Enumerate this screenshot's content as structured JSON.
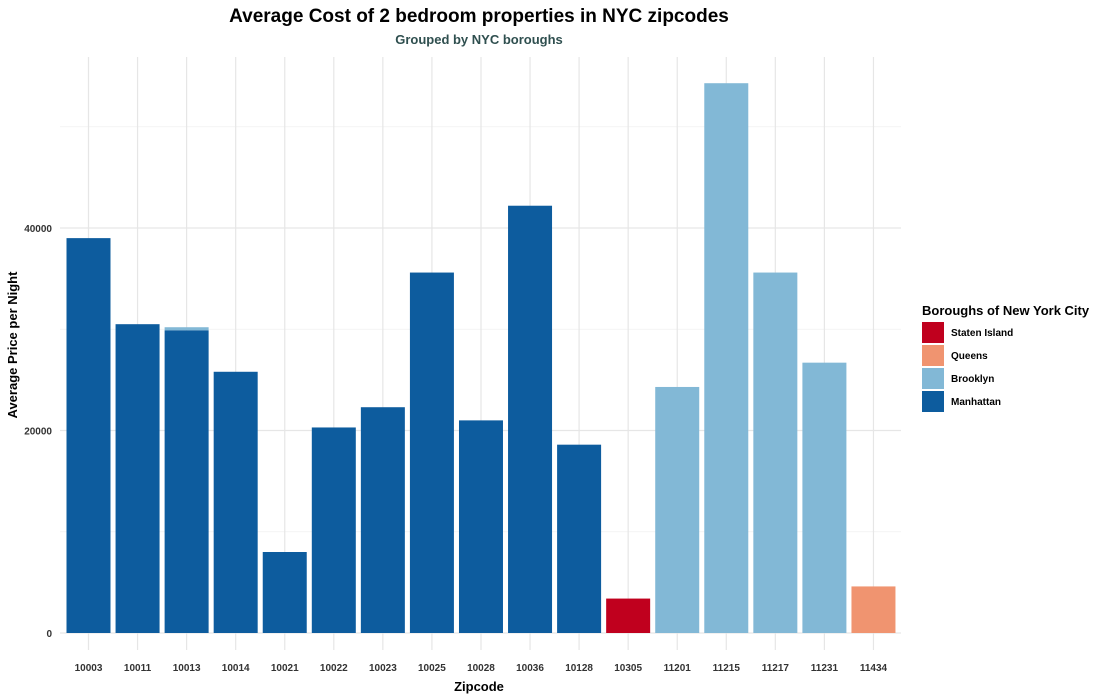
{
  "chart_data": {
    "type": "bar",
    "title": "Average Cost of 2 bedroom properties in NYC zipcodes",
    "subtitle": "Grouped by NYC boroughs",
    "xlabel": "Zipcode",
    "ylabel": "Average Price per Night",
    "ylim": [
      0,
      57000
    ],
    "y_ticks": [
      0,
      20000,
      40000
    ],
    "y_tick_labels": [
      "0",
      "20000",
      "40000"
    ],
    "grid": true,
    "legend": {
      "title": "Boroughs of New York City",
      "placement": "right",
      "entries": [
        {
          "name": "Staten Island",
          "color": "#c0001e"
        },
        {
          "name": "Queens",
          "color": "#f09470"
        },
        {
          "name": "Brooklyn",
          "color": "#82b8d6"
        },
        {
          "name": "Manhattan",
          "color": "#0d5c9e"
        }
      ]
    },
    "categories": [
      "10003",
      "10011",
      "10013",
      "10014",
      "10021",
      "10022",
      "10023",
      "10025",
      "10028",
      "10036",
      "10128",
      "10305",
      "11201",
      "11215",
      "11217",
      "11231",
      "11434"
    ],
    "bars": [
      {
        "zipcode": "10003",
        "segments": [
          {
            "borough": "Manhattan",
            "value": 39000
          }
        ]
      },
      {
        "zipcode": "10011",
        "segments": [
          {
            "borough": "Manhattan",
            "value": 30500
          }
        ]
      },
      {
        "zipcode": "10013",
        "segments": [
          {
            "borough": "Manhattan",
            "value": 29900
          },
          {
            "borough": "Brooklyn",
            "value": 300
          }
        ]
      },
      {
        "zipcode": "10014",
        "segments": [
          {
            "borough": "Manhattan",
            "value": 25800
          }
        ]
      },
      {
        "zipcode": "10021",
        "segments": [
          {
            "borough": "Manhattan",
            "value": 8000
          }
        ]
      },
      {
        "zipcode": "10022",
        "segments": [
          {
            "borough": "Manhattan",
            "value": 20300
          }
        ]
      },
      {
        "zipcode": "10023",
        "segments": [
          {
            "borough": "Manhattan",
            "value": 22300
          }
        ]
      },
      {
        "zipcode": "10025",
        "segments": [
          {
            "borough": "Manhattan",
            "value": 35600
          }
        ]
      },
      {
        "zipcode": "10028",
        "segments": [
          {
            "borough": "Manhattan",
            "value": 21000
          }
        ]
      },
      {
        "zipcode": "10036",
        "segments": [
          {
            "borough": "Manhattan",
            "value": 42200
          }
        ]
      },
      {
        "zipcode": "10128",
        "segments": [
          {
            "borough": "Manhattan",
            "value": 18600
          }
        ]
      },
      {
        "zipcode": "10305",
        "segments": [
          {
            "borough": "Staten Island",
            "value": 3400
          }
        ]
      },
      {
        "zipcode": "11201",
        "segments": [
          {
            "borough": "Brooklyn",
            "value": 24300
          }
        ]
      },
      {
        "zipcode": "11215",
        "segments": [
          {
            "borough": "Brooklyn",
            "value": 54300
          }
        ]
      },
      {
        "zipcode": "11217",
        "segments": [
          {
            "borough": "Brooklyn",
            "value": 35600
          }
        ]
      },
      {
        "zipcode": "11231",
        "segments": [
          {
            "borough": "Brooklyn",
            "value": 26700
          }
        ]
      },
      {
        "zipcode": "11434",
        "segments": [
          {
            "borough": "Queens",
            "value": 4600
          }
        ]
      }
    ]
  }
}
